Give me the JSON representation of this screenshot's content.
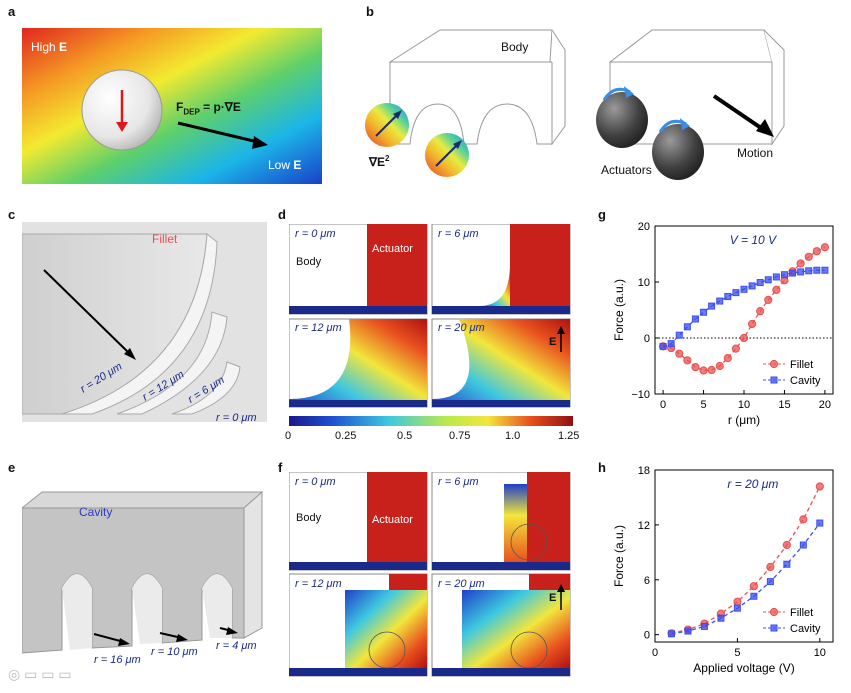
{
  "panels": {
    "a": {
      "letter": "a",
      "high_label": "High",
      "low_label": "Low",
      "field_symbol": "E",
      "force_main": "F",
      "force_sub": "DEP",
      "force_eq": "= p·∇E"
    },
    "b": {
      "letter": "b",
      "body_label": "Body",
      "grad_label": "∇E",
      "grad_sup": "2",
      "actuators_label": "Actuators",
      "motion_label": "Motion"
    },
    "c": {
      "letter": "c",
      "fillet_label": "Fillet",
      "radii": [
        "r = 20 μm",
        "r = 12 μm",
        "r = 6 μm",
        "r = 0 μm"
      ]
    },
    "d": {
      "letter": "d",
      "cells": [
        "r = 0 μm",
        "r = 6 μm",
        "r = 12 μm",
        "r = 20 μm"
      ],
      "body_label": "Body",
      "actuator_label": "Actuator",
      "e_label": "E",
      "colorbar_ticks": [
        "0",
        "0.25",
        "0.5",
        "0.75",
        "1.0",
        "1.25"
      ]
    },
    "e": {
      "letter": "e",
      "cavity_label": "Cavity",
      "radii": [
        "r = 16 μm",
        "r = 10 μm",
        "r = 4 μm"
      ]
    },
    "f": {
      "letter": "f",
      "cells": [
        "r = 0 μm",
        "r = 6 μm",
        "r = 12 μm",
        "r = 20 μm"
      ],
      "body_label": "Body",
      "actuator_label": "Actuator",
      "e_label": "E"
    },
    "g": {
      "letter": "g"
    },
    "h": {
      "letter": "h"
    }
  },
  "chart_data": [
    {
      "id": "g",
      "type": "line",
      "annotation": "V = 10 V",
      "xlabel": "r (μm)",
      "ylabel": "Force (a.u.)",
      "xlim": [
        -1,
        21
      ],
      "ylim": [
        -10,
        20
      ],
      "xticks": [
        0,
        5,
        10,
        15,
        20
      ],
      "yticks": [
        -10,
        0,
        10,
        20
      ],
      "xtick_labels": [
        "0",
        "5",
        "10",
        "15",
        "20"
      ],
      "ytick_labels": [
        "−10",
        "0",
        "10",
        "20"
      ],
      "zero_line": true,
      "legend": "bottom-right",
      "series": [
        {
          "name": "Fillet",
          "marker": "circle",
          "color": "#e8504f",
          "line": "dashed",
          "x": [
            0,
            1,
            2,
            3,
            4,
            5,
            6,
            7,
            8,
            9,
            10,
            11,
            12,
            13,
            14,
            15,
            16,
            17,
            18,
            19,
            20
          ],
          "y": [
            -1.5,
            -1.8,
            -2.8,
            -4.0,
            -5.2,
            -5.8,
            -5.7,
            -5.0,
            -3.6,
            -1.9,
            0.0,
            2.5,
            4.8,
            6.8,
            8.6,
            10.3,
            11.9,
            13.3,
            14.5,
            15.5,
            16.2
          ]
        },
        {
          "name": "Cavity",
          "marker": "square",
          "color": "#3b4ef0",
          "line": "dashed",
          "x": [
            0,
            1,
            2,
            3,
            4,
            5,
            6,
            7,
            8,
            9,
            10,
            11,
            12,
            13,
            14,
            15,
            16,
            17,
            18,
            19,
            20
          ],
          "y": [
            -1.5,
            -1.0,
            0.5,
            2.0,
            3.4,
            4.6,
            5.7,
            6.6,
            7.4,
            8.1,
            8.7,
            9.3,
            9.9,
            10.4,
            10.9,
            11.3,
            11.6,
            11.8,
            12.0,
            12.1,
            12.1
          ]
        }
      ]
    },
    {
      "id": "h",
      "type": "line",
      "annotation": "r = 20 μm",
      "xlabel": "Applied voltage (V)",
      "ylabel": "Force (a.u.)",
      "xlim": [
        0,
        10.8
      ],
      "ylim": [
        -0.8,
        18
      ],
      "xticks": [
        0,
        5,
        10
      ],
      "yticks": [
        0,
        6,
        12,
        18
      ],
      "xtick_labels": [
        "0",
        "5",
        "10"
      ],
      "ytick_labels": [
        "0",
        "6",
        "12",
        "18"
      ],
      "legend": "bottom-right",
      "series": [
        {
          "name": "Fillet",
          "marker": "circle",
          "color": "#e8504f",
          "line": "dashed",
          "x": [
            1,
            2,
            3,
            4,
            5,
            6,
            7,
            8,
            9,
            10
          ],
          "y": [
            0.15,
            0.55,
            1.2,
            2.3,
            3.6,
            5.3,
            7.4,
            9.8,
            12.6,
            16.2
          ]
        },
        {
          "name": "Cavity",
          "marker": "square",
          "color": "#3b4ef0",
          "line": "dashed",
          "x": [
            1,
            2,
            3,
            4,
            5,
            6,
            7,
            8,
            9,
            10
          ],
          "y": [
            0.1,
            0.4,
            0.9,
            1.8,
            2.9,
            4.2,
            5.8,
            7.7,
            9.8,
            12.2
          ]
        }
      ]
    }
  ]
}
